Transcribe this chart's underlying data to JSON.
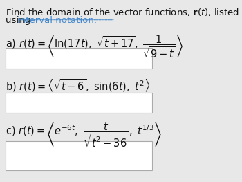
{
  "background_color": "#e8e8e8",
  "box_color": "#ffffff",
  "box_edge_color": "#aaaaaa",
  "link_color": "#4488cc",
  "text_color": "#111111",
  "font_size_title": 9.5,
  "font_size_formula": 10.5
}
